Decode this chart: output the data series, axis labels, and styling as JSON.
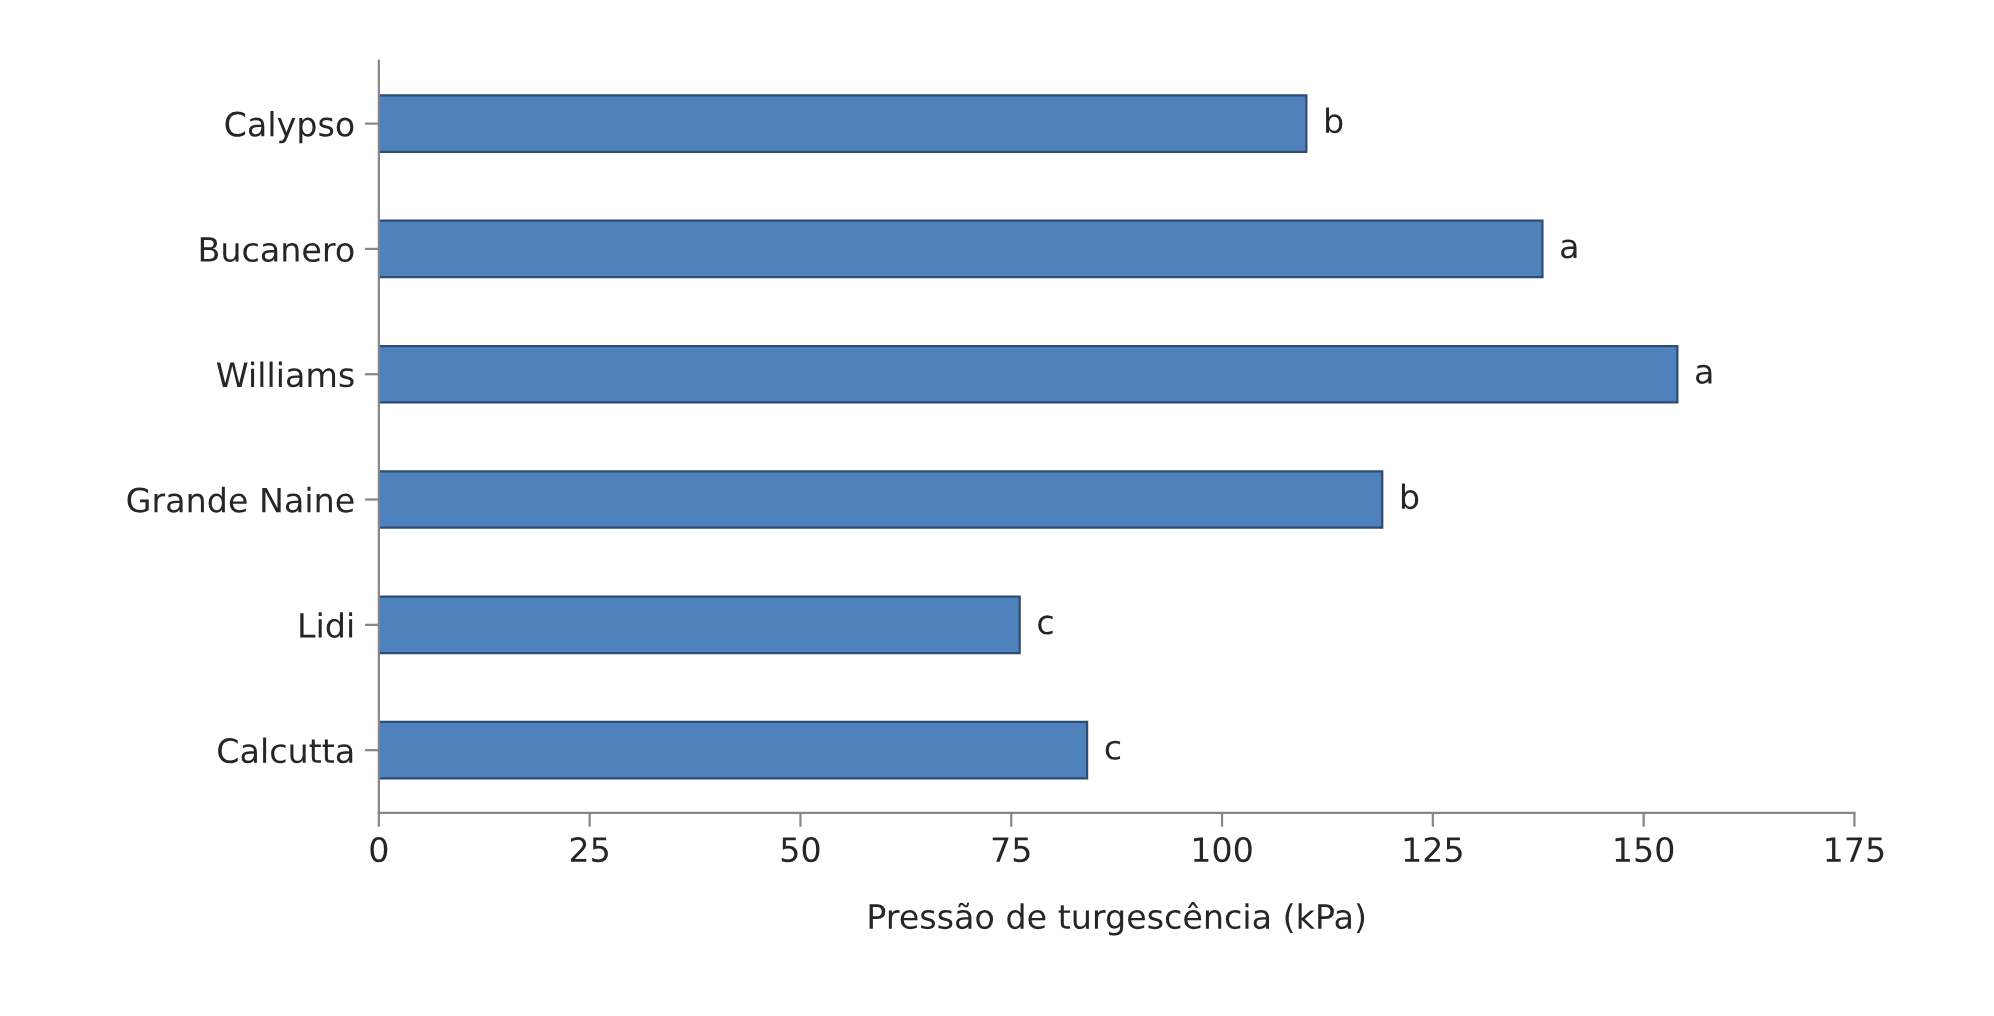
{
  "chart_data": {
    "type": "bar",
    "orientation": "horizontal",
    "xlabel": "Pressão de turgescência (kPa)",
    "categories": [
      "Calypso",
      "Bucanero",
      "Williams",
      "Grande Naine",
      "Lidi",
      "Calcutta"
    ],
    "values": [
      110,
      138,
      154,
      119,
      76,
      84
    ],
    "value_labels": [
      "b",
      "a",
      "a",
      "b",
      "c",
      "c"
    ],
    "color": "#4f81bd",
    "xlim": [
      0,
      175
    ],
    "xticks": [
      0,
      25,
      50,
      75,
      100,
      125,
      150,
      175
    ],
    "grid": false
  }
}
